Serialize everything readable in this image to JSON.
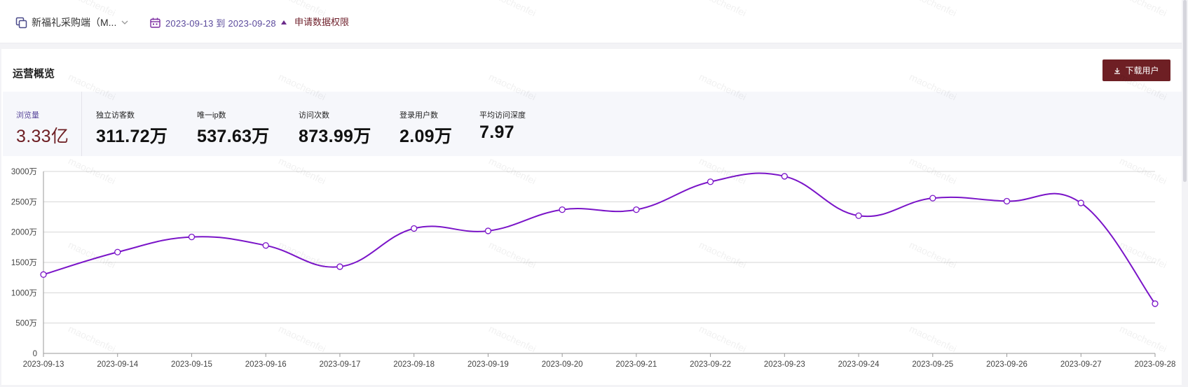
{
  "topbar": {
    "store_label": "新福礼采购端（M...",
    "date_range": "2023-09-13 到 2023-09-28",
    "apply_link": "申请数据权限"
  },
  "panel": {
    "title": "运营概览",
    "download_label": "下载用户"
  },
  "metrics": [
    {
      "label": "浏览量",
      "value": "3.33亿",
      "active": true
    },
    {
      "label": "独立访客数",
      "value": "311.72万"
    },
    {
      "label": "唯一ip数",
      "value": "537.63万"
    },
    {
      "label": "访问次数",
      "value": "873.99万"
    },
    {
      "label": "登录用户数",
      "value": "2.09万"
    },
    {
      "label": "平均访问深度",
      "value": "7.97"
    }
  ],
  "watermark": "maochenfei",
  "colors": {
    "accent": "#6e1f24",
    "line": "#7a14c8",
    "link": "#5b4a9c"
  },
  "chart_data": {
    "type": "line",
    "x": [
      "2023-09-13",
      "2023-09-14",
      "2023-09-15",
      "2023-09-16",
      "2023-09-17",
      "2023-09-18",
      "2023-09-19",
      "2023-09-20",
      "2023-09-21",
      "2023-09-22",
      "2023-09-23",
      "2023-09-24",
      "2023-09-25",
      "2023-09-26",
      "2023-09-27",
      "2023-09-28"
    ],
    "series": [
      {
        "values": [
          1300,
          1670,
          1920,
          1780,
          1430,
          2060,
          2020,
          2370,
          2370,
          2830,
          2920,
          2270,
          2560,
          2510,
          2480,
          820
        ]
      }
    ],
    "y_ticks": [
      "0",
      "500万",
      "1000万",
      "1500万",
      "2000万",
      "2500万",
      "3000万"
    ],
    "ylim": [
      0,
      3000
    ],
    "grid": true
  }
}
